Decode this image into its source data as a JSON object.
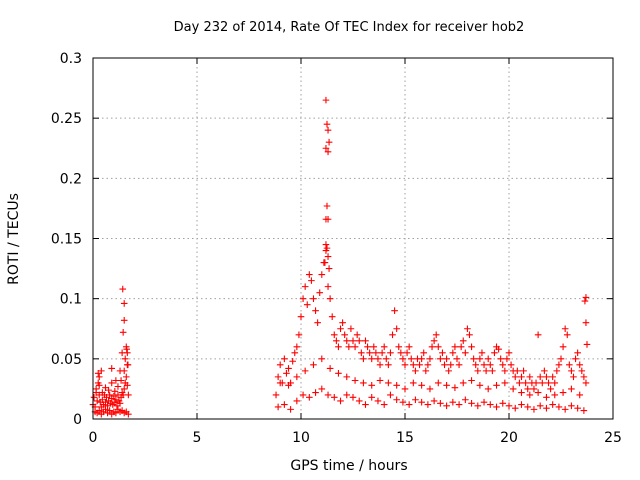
{
  "chart_data": {
    "type": "scatter",
    "title": "Day 232 of 2014, Rate Of TEC Index for receiver hob2",
    "xlabel": "GPS time / hours",
    "ylabel": "ROTI / TECUs",
    "xlim": [
      0,
      25
    ],
    "ylim": [
      0,
      0.3
    ],
    "xticks": [
      "0",
      "5",
      "10",
      "15",
      "20",
      "25"
    ],
    "yticks": [
      "0",
      "0.05",
      "0.1",
      "0.15",
      "0.2",
      "0.25",
      "0.3"
    ],
    "grid": true,
    "marker": "+",
    "marker_color": "#ff0000",
    "series": [
      {
        "x": [
          0.0,
          0.05,
          0.1,
          0.15,
          0.2,
          0.25,
          0.3,
          0.35,
          0.4,
          0.45,
          0.5,
          0.55,
          0.6,
          0.65,
          0.7,
          0.75,
          0.8,
          0.85,
          0.9,
          0.95,
          1.0,
          1.05,
          1.1,
          1.15,
          1.2,
          1.25,
          1.3,
          1.35,
          1.4,
          1.45,
          1.5,
          1.55,
          1.6,
          1.65,
          1.7,
          0.1,
          0.2,
          0.3,
          0.4,
          0.5,
          0.6,
          0.7,
          0.8,
          0.9,
          1.0,
          1.1,
          1.2,
          1.3,
          1.4,
          1.5,
          1.6,
          1.7,
          0.15,
          0.3,
          0.45,
          0.6,
          0.75,
          0.9,
          1.05,
          1.2,
          1.35,
          1.5,
          1.65,
          0.25,
          0.3,
          0.4,
          0.9,
          1.1,
          1.3,
          1.4,
          1.45,
          1.5,
          1.55,
          1.6,
          1.62,
          1.65,
          1.68,
          1.43,
          1.5
        ],
        "y": [
          0.012,
          0.018,
          0.01,
          0.022,
          0.015,
          0.03,
          0.02,
          0.014,
          0.01,
          0.016,
          0.012,
          0.02,
          0.014,
          0.018,
          0.011,
          0.015,
          0.02,
          0.013,
          0.017,
          0.012,
          0.019,
          0.014,
          0.016,
          0.011,
          0.02,
          0.015,
          0.013,
          0.018,
          0.022,
          0.02,
          0.025,
          0.03,
          0.035,
          0.028,
          0.02,
          0.006,
          0.005,
          0.007,
          0.004,
          0.006,
          0.008,
          0.005,
          0.007,
          0.004,
          0.006,
          0.005,
          0.008,
          0.006,
          0.007,
          0.005,
          0.006,
          0.004,
          0.025,
          0.028,
          0.022,
          0.026,
          0.024,
          0.03,
          0.023,
          0.027,
          0.032,
          0.04,
          0.045,
          0.038,
          0.035,
          0.04,
          0.042,
          0.032,
          0.04,
          0.055,
          0.072,
          0.082,
          0.05,
          0.06,
          0.058,
          0.055,
          0.045,
          0.108,
          0.096
        ]
      },
      {
        "x": [
          8.8,
          8.9,
          9.0,
          9.1,
          9.2,
          9.3,
          9.4,
          9.5,
          9.6,
          9.7,
          9.8,
          9.9,
          10.0,
          10.1,
          10.2,
          10.3,
          10.4,
          10.5,
          10.6,
          10.7,
          10.8,
          10.9,
          11.0,
          11.1,
          11.2,
          11.3,
          11.4,
          11.5,
          11.6,
          11.7,
          11.8,
          11.9,
          12.0,
          12.1,
          12.2,
          12.3,
          12.4,
          12.5,
          12.6,
          12.7,
          12.8,
          12.9,
          13.0,
          13.1,
          13.2,
          13.3,
          13.4,
          13.5,
          13.6,
          13.7,
          13.8,
          13.9,
          14.0,
          14.1,
          14.2,
          14.3,
          14.4,
          14.5,
          14.6,
          14.7,
          14.8,
          14.9,
          15.0,
          15.1,
          15.2,
          15.3,
          15.4,
          15.5,
          15.6,
          15.7,
          15.8,
          15.9,
          16.0,
          16.1,
          16.2,
          16.3,
          16.4,
          16.5,
          16.6,
          16.7,
          16.8,
          16.9,
          17.0,
          17.1,
          17.2,
          17.3,
          17.4,
          17.5,
          17.6,
          17.7,
          17.8,
          17.9,
          18.0,
          18.1,
          18.2,
          18.3,
          18.4,
          18.5,
          18.6,
          18.7,
          18.8,
          18.9,
          19.0,
          19.1,
          19.2,
          19.3,
          19.4,
          19.5,
          19.6,
          19.7,
          19.8,
          19.9,
          20.0,
          20.1,
          20.2,
          20.3,
          20.4,
          20.5,
          20.6,
          20.7,
          20.8,
          20.9,
          21.0,
          21.1,
          21.2,
          21.3,
          21.4,
          21.5,
          21.6,
          21.7,
          21.8,
          21.9,
          22.0,
          22.1,
          22.2,
          22.3,
          22.4,
          22.5,
          22.6,
          22.7,
          22.8,
          22.9,
          23.0,
          23.1,
          23.2,
          23.3,
          23.4,
          23.5,
          23.6,
          23.7
        ],
        "y": [
          0.02,
          0.035,
          0.045,
          0.03,
          0.05,
          0.038,
          0.042,
          0.03,
          0.048,
          0.055,
          0.06,
          0.07,
          0.085,
          0.1,
          0.11,
          0.095,
          0.12,
          0.115,
          0.1,
          0.09,
          0.08,
          0.105,
          0.12,
          0.13,
          0.14,
          0.11,
          0.1,
          0.085,
          0.07,
          0.065,
          0.06,
          0.075,
          0.08,
          0.07,
          0.065,
          0.06,
          0.075,
          0.065,
          0.06,
          0.07,
          0.065,
          0.055,
          0.05,
          0.065,
          0.06,
          0.055,
          0.05,
          0.06,
          0.055,
          0.05,
          0.045,
          0.055,
          0.06,
          0.05,
          0.045,
          0.055,
          0.07,
          0.09,
          0.075,
          0.06,
          0.055,
          0.05,
          0.045,
          0.055,
          0.06,
          0.05,
          0.045,
          0.04,
          0.05,
          0.045,
          0.05,
          0.055,
          0.04,
          0.045,
          0.05,
          0.06,
          0.065,
          0.07,
          0.06,
          0.05,
          0.055,
          0.045,
          0.05,
          0.04,
          0.045,
          0.055,
          0.06,
          0.05,
          0.045,
          0.06,
          0.065,
          0.055,
          0.075,
          0.07,
          0.06,
          0.05,
          0.045,
          0.04,
          0.05,
          0.055,
          0.045,
          0.04,
          0.05,
          0.045,
          0.04,
          0.055,
          0.06,
          0.058,
          0.05,
          0.045,
          0.04,
          0.05,
          0.055,
          0.045,
          0.04,
          0.035,
          0.04,
          0.03,
          0.035,
          0.04,
          0.03,
          0.025,
          0.035,
          0.03,
          0.025,
          0.03,
          0.07,
          0.035,
          0.03,
          0.04,
          0.035,
          0.03,
          0.025,
          0.035,
          0.03,
          0.04,
          0.045,
          0.05,
          0.06,
          0.075,
          0.07,
          0.045,
          0.04,
          0.035,
          0.05,
          0.055,
          0.045,
          0.04,
          0.035,
          0.03
        ]
      },
      {
        "x": [
          8.9,
          9.2,
          9.5,
          9.8,
          10.1,
          10.4,
          10.7,
          11.0,
          11.3,
          11.6,
          11.9,
          12.2,
          12.5,
          12.8,
          13.1,
          13.4,
          13.7,
          14.0,
          14.3,
          14.6,
          14.9,
          15.2,
          15.5,
          15.8,
          16.1,
          16.4,
          16.7,
          17.0,
          17.3,
          17.6,
          17.9,
          18.2,
          18.5,
          18.8,
          19.1,
          19.4,
          19.7,
          20.0,
          20.3,
          20.6,
          20.9,
          21.2,
          21.5,
          21.8,
          22.1,
          22.4,
          22.7,
          23.0,
          23.3,
          23.6,
          9.0,
          9.4,
          9.8,
          10.2,
          10.6,
          11.0,
          11.4,
          11.8,
          12.2,
          12.6,
          13.0,
          13.4,
          13.8,
          14.2,
          14.6,
          15.0,
          15.4,
          15.8,
          16.2,
          16.6,
          17.0,
          17.4,
          17.8,
          18.2,
          18.6,
          19.0,
          19.4,
          19.8,
          20.2,
          20.6,
          21.0,
          21.4,
          21.8,
          22.2,
          22.6,
          23.0,
          23.4
        ],
        "y": [
          0.01,
          0.012,
          0.008,
          0.015,
          0.02,
          0.018,
          0.022,
          0.025,
          0.02,
          0.018,
          0.015,
          0.02,
          0.018,
          0.015,
          0.012,
          0.018,
          0.015,
          0.012,
          0.02,
          0.016,
          0.014,
          0.012,
          0.016,
          0.014,
          0.012,
          0.015,
          0.013,
          0.011,
          0.014,
          0.012,
          0.016,
          0.013,
          0.011,
          0.014,
          0.012,
          0.01,
          0.013,
          0.011,
          0.009,
          0.012,
          0.01,
          0.008,
          0.011,
          0.009,
          0.012,
          0.01,
          0.008,
          0.011,
          0.009,
          0.007,
          0.03,
          0.028,
          0.035,
          0.04,
          0.045,
          0.05,
          0.042,
          0.038,
          0.035,
          0.032,
          0.03,
          0.028,
          0.032,
          0.03,
          0.028,
          0.025,
          0.03,
          0.028,
          0.025,
          0.03,
          0.028,
          0.026,
          0.03,
          0.032,
          0.028,
          0.025,
          0.028,
          0.03,
          0.025,
          0.022,
          0.02,
          0.022,
          0.018,
          0.02,
          0.022,
          0.025,
          0.02
        ]
      },
      {
        "x": [
          11.2,
          11.25,
          11.3,
          11.35,
          11.2,
          11.3,
          11.25,
          11.2,
          11.3,
          11.2,
          11.25,
          11.3,
          11.15,
          11.35,
          23.7,
          23.65,
          23.7,
          23.75
        ],
        "y": [
          0.265,
          0.245,
          0.24,
          0.23,
          0.225,
          0.222,
          0.177,
          0.166,
          0.166,
          0.145,
          0.142,
          0.135,
          0.13,
          0.125,
          0.101,
          0.098,
          0.08,
          0.062
        ]
      }
    ]
  }
}
